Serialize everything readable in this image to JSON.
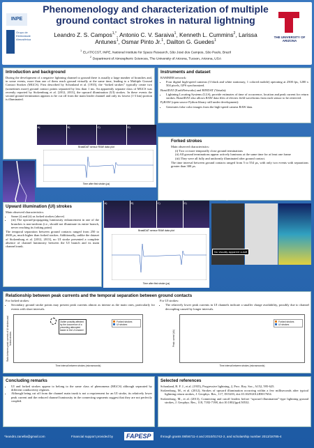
{
  "header": {
    "title": "Phenomenology and characterization of multiple ground contact strokes in natural lightning",
    "authors": [
      {
        "name": "Leandro Z. S. Campos",
        "sup": "1,*"
      },
      {
        "name": "Antonio C. V. Saraiva",
        "sup": "1"
      },
      {
        "name": "Kenneth L. Cummins",
        "sup": "2"
      },
      {
        "name": "Larissa Antunes",
        "sup": "1"
      },
      {
        "name": "Osmar Pinto Jr.",
        "sup": "1"
      },
      {
        "name": "Dailton G. Guedes",
        "sup": "1"
      }
    ],
    "affiliations": [
      {
        "sup": "1",
        "text": "ELAT/CCST, INPE, National Institute for Space Research, São José dos Campos, São Paulo, Brazil"
      },
      {
        "sup": "2",
        "text": "Department of Atmospheric Sciences, The University of Arizona, Tucson, Arizona, USA"
      }
    ],
    "logos": {
      "inpe": "INPE",
      "elat": "Grupo de Eletricidade Atmosférica",
      "arizona": "THE UNIVERSITY OF ARIZONA"
    }
  },
  "intro": {
    "title": "Introduction and background",
    "text": "During the development of a negative lightning channel to ground there is usually a large number of branches and, in some events, more than one of them reach ground virtually at the same time, leading to a Multiple Ground Contact Strokes (MGCS). First described by Schonland et al. [1935], the “forked strokes” typically create two (sometimes more) ground contact points separated by less than 1 ms. An apparently separate class of MGCS was recently reported by Stolzenburg et al. [2012, 2013], the upward illumination (UI) strokes. In these events the second ground termination appears to be cut off from the main leader channel and only its lowest (1-3 km) portion is illuminated."
  },
  "instruments": {
    "title": "Instruments and dataset",
    "groups": [
      {
        "label": "RAMMER network:",
        "bullets": [
          "Four digital high-speed cameras (3 black and white stationary, 1 colored mobile) operating at 2500 fps, 1200 x 504 pixels, GPS synchronized."
        ]
      },
      {
        "label": "BrasilDAT (EarthNetworks) and RINDAT (Vaisala):",
        "bullets": [
          "Lightning Locating Systems (LLS), provide estimates of time of occurrence, location and peak current for return strokes. BrasilDAT also allows RAW data files of electric field waveforms from each sensor to be retrieved."
        ]
      },
      {
        "label": "PyRAW (open source Python library still under development):",
        "bullets": [
          "Generates false color images from the high-speed camera RAW data."
        ]
      }
    ]
  },
  "figures": {
    "panels": [
      "A)",
      "B)",
      "C)",
      "D)"
    ],
    "plot_title": "BrasilDAT sensor RAW data plot",
    "x_label": "Time after first stroke (µs)",
    "views": [
      "Original",
      "Inverted",
      "False color"
    ],
    "cutoff": "No visually apparent cutoff"
  },
  "forked": {
    "title": "Forked strokes",
    "intro": "Main observed characteristics:",
    "bullets": [
      "(i) Two or more temporally close ground terminations",
      "(ii) All ground terminations appear actively luminous at the same time for at least one frame",
      "(iii) They were all fully and uniformly illuminated after ground contact."
    ],
    "text": "The time interval between ground contacts ranged from 5 to 554 µs, with only two events with separations greater than 300 µs."
  },
  "upward": {
    "title": "Upward illumination (UI) strokes",
    "intro": "Main observed characteristics:",
    "bullets": [
      "Same (i) and (ii) as forked strokes (above)",
      "(iii) The upward-propagating luminosity enhancement in one of the branches is non-uniform (i.e., should not illuminate its entire branch, never reaching its forking point)"
    ],
    "text": "The temporal separation between ground contacts ranged from 250 to 2600 µs, much higher than forked strokes. Additionally, unlike the dataset of Stolzenburg et al. [2012, 2013], no UI stroke presented a complete absence of channel luminosity between the UI branch and its main channel trunk."
  },
  "relationship": {
    "title": "Relationship between peak currents and the temporal separation between ground contacts",
    "left": {
      "label": "For forked strokes:",
      "bullet": "Secondary ground stroke points may present peak currents almost as intense as the main ones, particularly for events with short intervals."
    },
    "right": {
      "label": "For UI strokes:",
      "bullet": "The relatively lower peak currents in UI channels indicate a smaller charge availability, possibly due to channel decoupling caused by longer intervals."
    },
    "legend": [
      "Forked strokes",
      "UI strokes"
    ],
    "annotation": "Outlier possibly affected by the occurrence of a preceding attempted leader in the UI channel",
    "left_ylabel": "Ratio between peak currents of UI strokes and forked strokes",
    "right_ylabel": "Peak current (kA)",
    "xlabel": "Time interval between strokes (microseconds)"
  },
  "conclusions": {
    "title": "Concluding remarks",
    "bullets": [
      "UI and forked strokes appear to belong to the same class of phenomena (MGCS) although separated by different conductivity régimes.",
      "Although being cut off from the channel main trunk is not a requirement for an UI stroke, its relatively lower peak current and the reduced channel luminosity in the connecting segments suggest that they are not perfectly coupled."
    ]
  },
  "references": {
    "title": "Selected references",
    "items": [
      "Schonland, B. F. J., et al. (1935), Progressive lightning, 2, Proc. Roy. Soc., A152, 595-625.",
      "Stolzenburg, M., et al. (2012), Strokes of upward illumination occurring within a few milliseconds after typical lightning return strokes, J. Geophys. Res., 117, D15203, doi:10.1029/2012JD017654.",
      "Stolzenburg, M., et al. (2013), Connecting and cutoff leaders before “upward illumination”-type lightning ground strokes, J. Geophys. Res., 118, 7182-7198, doi:10.1002/jgrd.50532."
    ]
  },
  "footer": {
    "email": "*leandro.zanella@gmail.com",
    "support": "Financial support provided by",
    "agency": "FAPESP",
    "grants": "through grants 08/56711-4 and 2010/01742-2, and scholarship number 2013/18785-4"
  }
}
